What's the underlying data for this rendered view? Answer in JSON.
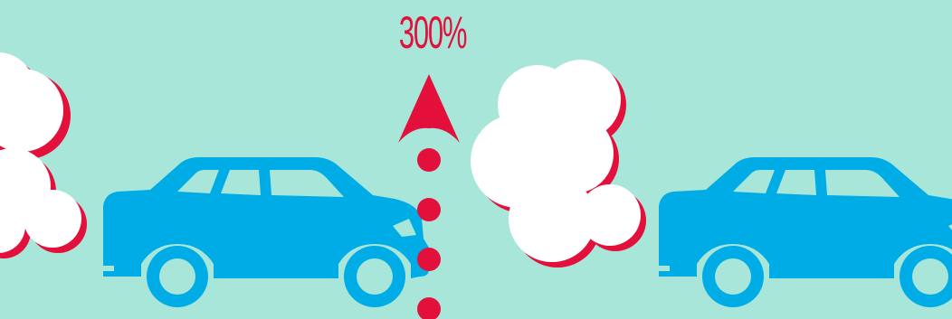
{
  "label": {
    "value": "300%"
  },
  "colors": {
    "background": "#a8e6da",
    "car": "#00ace6",
    "accent": "#e3103b",
    "smoke": "#ffffff",
    "smoke_shadow": "#e3103b"
  },
  "icons": {
    "car": "suv-car-icon",
    "smoke": "exhaust-smoke-icon",
    "arrow": "up-arrow-icon",
    "dots": "dotted-line"
  }
}
